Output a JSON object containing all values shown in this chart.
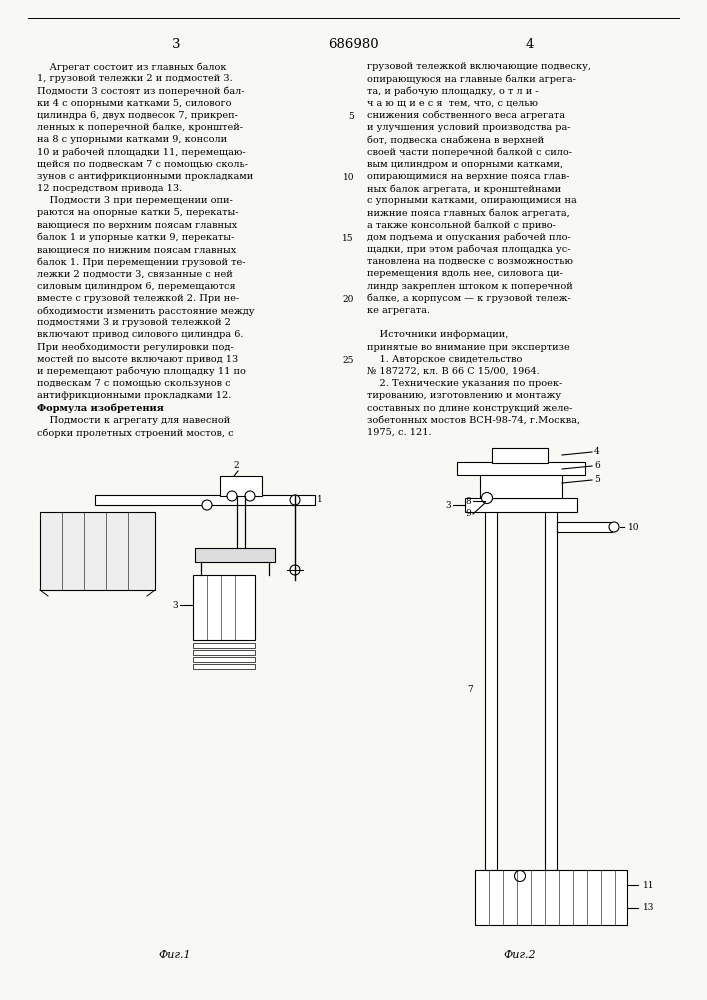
{
  "page_width": 7.07,
  "page_height": 10.0,
  "bg_color": "#f8f8f4",
  "page_num_left": "3",
  "page_num_center": "686980",
  "page_num_right": "4",
  "left_col_lines": [
    "    Агрегат состоит из главных балок",
    "1, грузовой тележки 2 и подмостей 3.",
    "Подмости 3 состоят из поперечной бал-",
    "ки 4 с опорными катками 5, силового",
    "цилиндра 6, двух подвесок 7, прикреп-",
    "ленных к поперечной балке, кронштей-",
    "на 8 с упорными катками 9, консоли",
    "10 и рабочей площадки 11, перемещаю-",
    "щейся по подвескам 7 с помощью сколь-",
    "зунов с антифрикционными прокладками",
    "12 посредством привода 13.",
    "    Подмости 3 при перемещении опи-",
    "раются на опорные катки 5, перекаты-",
    "вающиеся по верхним поясам главных",
    "балок 1 и упорные катки 9, перекаты-",
    "вающиеся по нижним поясам главных",
    "балок 1. При перемещении грузовой те-",
    "лежки 2 подмости 3, связанные с ней",
    "силовым цилиндром 6, перемещаются",
    "вместе с грузовой тележкой 2. При не-",
    "обходимости изменить расстояние между",
    "подмостями 3 и грузовой тележкой 2",
    "включают привод силового цилиндра 6.",
    "При необходимости регулировки под-",
    "мостей по высоте включают привод 13",
    "и перемещают рабочую площадку 11 по",
    "подвескам 7 с помощью скользунов с",
    "антифрикционными прокладками 12.",
    "    Формула изобретения",
    "    Подмости к агрегату для навесной",
    "сборки пролетных строений мостов, с"
  ],
  "right_col_lines": [
    "грузовой тележкой включающие подвеску,",
    "опирающуюся на главные балки агрега-",
    "та, и рабочую площадку, о т л и -",
    "ч а ю щ и е с я  тем, что, с целью",
    "снижения собственного веса агрегата",
    "и улучшения условий производства ра-",
    "бот, подвеска снабжена в верхней",
    "своей части поперечной балкой с сило-",
    "вым цилиндром и опорными катками,",
    "опирающимися на верхние пояса глав-",
    "ных балок агрегата, и кронштейнами",
    "с упорными катками, опирающимися на",
    "нижние пояса главных балок агрегата,",
    "а также консольной балкой с приво-",
    "дом подъема и опускания рабочей пло-",
    "щадки, при этом рабочая площадка ус-",
    "тановлена на подвеске с возможностью",
    "перемещения вдоль нее, силовога ци-",
    "линдр закреплен штоком к поперечной",
    "балке, а корпусом — к грузовой тележ-",
    "ке агрегата.",
    "",
    "    Источники информации,",
    "принятые во внимание при экспертизе",
    "    1. Авторское свидетельство",
    "№ 187272, кл. В 66 С 15/00, 1964.",
    "    2. Технические указания по проек-",
    "тированию, изготовлению и монтажу",
    "составных по длине конструкций желе-",
    "зобетонных мостов ВСН-98-74, г.Москва,",
    "1975, с. 121."
  ]
}
